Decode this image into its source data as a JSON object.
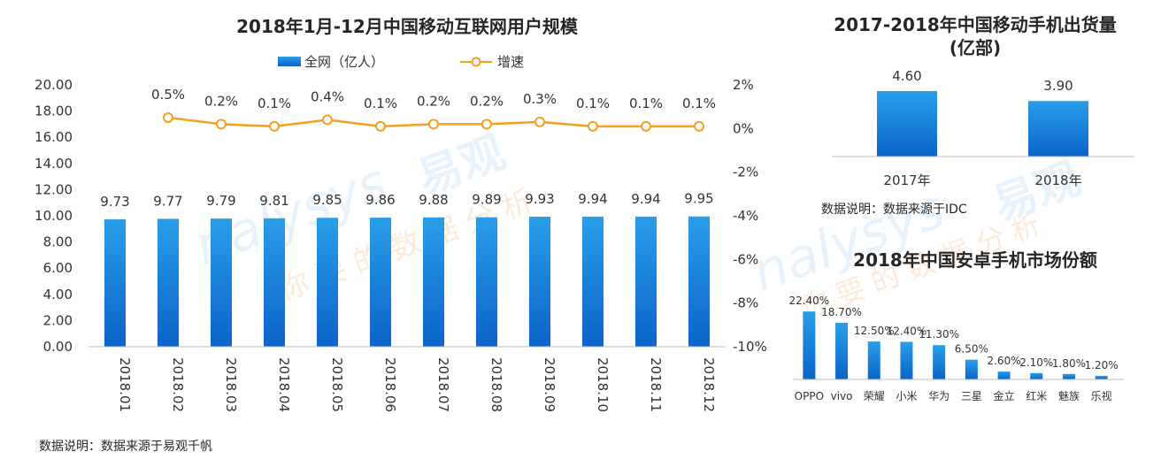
{
  "chart_data": [
    {
      "type": "bar+line",
      "title": "2018年1月-12月中国移动互联网用户规模",
      "categories": [
        "2018.01",
        "2018.02",
        "2018.03",
        "2018.04",
        "2018.05",
        "2018.06",
        "2018.07",
        "2018.08",
        "2018.09",
        "2018.10",
        "2018.11",
        "2018.12"
      ],
      "series": [
        {
          "name": "全网（亿人）",
          "kind": "bar",
          "axis": "left",
          "values": [
            9.73,
            9.77,
            9.79,
            9.81,
            9.85,
            9.86,
            9.88,
            9.89,
            9.93,
            9.94,
            9.94,
            9.95
          ],
          "labels": [
            "9.73",
            "9.77",
            "9.79",
            "9.81",
            "9.85",
            "9.86",
            "9.88",
            "9.89",
            "9.93",
            "9.94",
            "9.94",
            "9.95"
          ]
        },
        {
          "name": "增速",
          "kind": "line",
          "axis": "right",
          "values": [
            null,
            0.5,
            0.2,
            0.1,
            0.4,
            0.1,
            0.2,
            0.2,
            0.3,
            0.1,
            0.1,
            0.1
          ],
          "labels": [
            null,
            "0.5%",
            "0.2%",
            "0.1%",
            "0.4%",
            "0.1%",
            "0.2%",
            "0.2%",
            "0.3%",
            "0.1%",
            "0.1%",
            "0.1%"
          ]
        }
      ],
      "ylim": [
        0,
        20
      ],
      "yticks": [
        "20.00",
        "18.00",
        "16.00",
        "14.00",
        "12.00",
        "10.00",
        "8.00",
        "6.00",
        "4.00",
        "2.00",
        "0.00"
      ],
      "y2lim": [
        -10,
        2
      ],
      "y2ticks": [
        "2%",
        "0%",
        "-2%",
        "-4%",
        "-6%",
        "-8%",
        "-10%"
      ],
      "legend": "top"
    },
    {
      "type": "bar",
      "title": "2017-2018年中国移动手机出货量",
      "subtitle": "(亿部)",
      "categories": [
        "2017年",
        "2018年"
      ],
      "values": [
        4.6,
        3.9
      ],
      "labels": [
        "4.60",
        "3.90"
      ]
    },
    {
      "type": "bar",
      "title": "2018年中国安卓手机市场份额",
      "categories": [
        "OPPO",
        "vivo",
        "荣耀",
        "小米",
        "华为",
        "三星",
        "金立",
        "红米",
        "魅族",
        "乐视"
      ],
      "values": [
        22.4,
        18.7,
        12.5,
        12.4,
        11.3,
        6.5,
        2.6,
        2.1,
        1.8,
        1.2
      ],
      "labels": [
        "22.40%",
        "18.70%",
        "12.50%",
        "12.40%",
        "11.30%",
        "6.50%",
        "2.60%",
        "2.10%",
        "1.80%",
        "1.20%"
      ]
    }
  ],
  "notes": {
    "left_source": "数据说明：数据来源于易观千帆",
    "right_source": "数据说明：数据来源于IDC"
  },
  "watermark": "Analysys 易观 你要的数据分析",
  "colors": {
    "bar_top": "#2a9ee8",
    "bar_bottom": "#0b63c9",
    "line": "#f5a01e",
    "axis": "#bfbfbf",
    "watermark": "#b9d9f2"
  }
}
